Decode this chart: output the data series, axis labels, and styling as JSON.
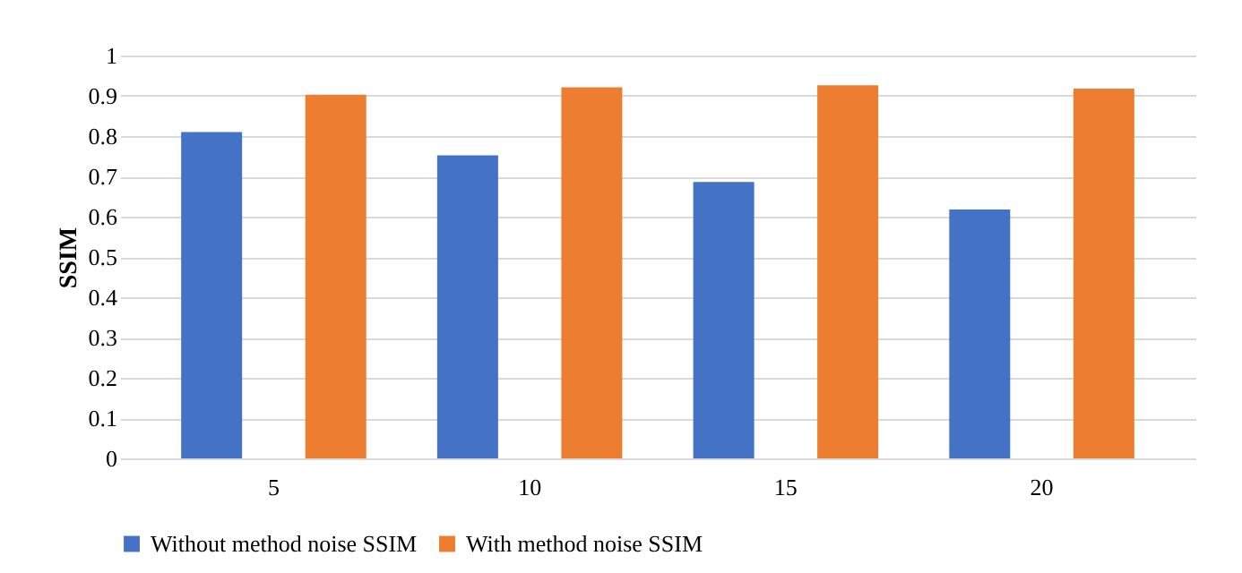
{
  "chart_data": {
    "type": "bar",
    "ylabel": "SSIM",
    "categories": [
      "5",
      "10",
      "15",
      "20"
    ],
    "series": [
      {
        "name": "Without method noise SSIM",
        "color": "#4472c4",
        "values": [
          0.81,
          0.752,
          0.686,
          0.618
        ]
      },
      {
        "name": "With method noise SSIM",
        "color": "#ed7d31",
        "values": [
          0.903,
          0.921,
          0.926,
          0.918
        ]
      }
    ],
    "ylim": [
      0,
      1
    ],
    "yticks": [
      0,
      0.1,
      0.2,
      0.3,
      0.4,
      0.5,
      0.6,
      0.7,
      0.8,
      0.9,
      1
    ],
    "grid": "y",
    "legend": "bottom"
  }
}
